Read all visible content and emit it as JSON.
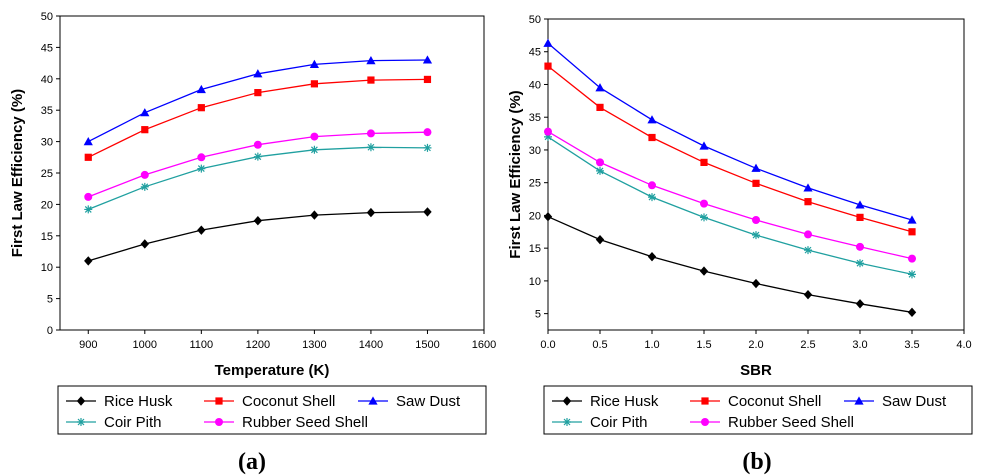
{
  "chart_data": [
    {
      "type": "line",
      "caption": "(a)",
      "xlabel": "Temperature (K)",
      "ylabel": "First Law Efficiency (%)",
      "xlim": [
        850,
        1600
      ],
      "ylim": [
        0,
        50
      ],
      "xticks": [
        "900",
        "1000",
        "1100",
        "1200",
        "1300",
        "1400",
        "1500",
        "1600"
      ],
      "xtick_values": [
        900,
        1000,
        1100,
        1200,
        1300,
        1400,
        1500,
        1600
      ],
      "yticks": [
        "0",
        "5",
        "10",
        "15",
        "20",
        "25",
        "30",
        "35",
        "40",
        "45",
        "50"
      ],
      "ytick_values": [
        0,
        5,
        10,
        15,
        20,
        25,
        30,
        35,
        40,
        45,
        50
      ],
      "x": [
        900,
        1000,
        1100,
        1200,
        1300,
        1400,
        1500
      ],
      "series": [
        {
          "name": "Rice Husk",
          "color": "#000000",
          "marker": "diamond",
          "values": [
            11.0,
            13.7,
            15.9,
            17.4,
            18.3,
            18.7,
            18.8
          ]
        },
        {
          "name": "Coconut Shell",
          "color": "#ff0000",
          "marker": "square",
          "values": [
            27.5,
            31.9,
            35.4,
            37.8,
            39.2,
            39.8,
            39.9
          ]
        },
        {
          "name": "Saw Dust",
          "color": "#0000ff",
          "marker": "triangle",
          "values": [
            30.0,
            34.6,
            38.3,
            40.8,
            42.3,
            42.9,
            43.0
          ]
        },
        {
          "name": "Coir Pith",
          "color": "#20a0a0",
          "marker": "star",
          "values": [
            19.2,
            22.8,
            25.7,
            27.6,
            28.7,
            29.1,
            29.0
          ]
        },
        {
          "name": "Rubber Seed Shell",
          "color": "#ff00ff",
          "marker": "circle",
          "values": [
            21.2,
            24.7,
            27.5,
            29.5,
            30.8,
            31.3,
            31.5
          ]
        }
      ]
    },
    {
      "type": "line",
      "caption": "(b)",
      "xlabel": "SBR",
      "ylabel": "First Law Efficiency (%)",
      "xlim": [
        0.0,
        4.0
      ],
      "ylim": [
        2.5,
        50
      ],
      "xticks": [
        "0.0",
        "0.5",
        "1.0",
        "1.5",
        "2.0",
        "2.5",
        "3.0",
        "3.5",
        "4.0"
      ],
      "xtick_values": [
        0.0,
        0.5,
        1.0,
        1.5,
        2.0,
        2.5,
        3.0,
        3.5,
        4.0
      ],
      "yticks": [
        "5",
        "10",
        "15",
        "20",
        "25",
        "30",
        "35",
        "40",
        "45",
        "50"
      ],
      "ytick_values": [
        5,
        10,
        15,
        20,
        25,
        30,
        35,
        40,
        45,
        50
      ],
      "x": [
        0.0,
        0.5,
        1.0,
        1.5,
        2.0,
        2.5,
        3.0,
        3.5
      ],
      "series": [
        {
          "name": "Rice Husk",
          "color": "#000000",
          "marker": "diamond",
          "values": [
            19.8,
            16.3,
            13.7,
            11.5,
            9.6,
            7.9,
            6.5,
            5.2
          ]
        },
        {
          "name": "Coconut Shell",
          "color": "#ff0000",
          "marker": "square",
          "values": [
            42.8,
            36.5,
            31.9,
            28.1,
            24.9,
            22.1,
            19.7,
            17.5
          ]
        },
        {
          "name": "Saw Dust",
          "color": "#0000ff",
          "marker": "triangle",
          "values": [
            46.3,
            39.5,
            34.6,
            30.6,
            27.2,
            24.2,
            21.6,
            19.3
          ]
        },
        {
          "name": "Coir Pith",
          "color": "#20a0a0",
          "marker": "star",
          "values": [
            32.0,
            26.8,
            22.8,
            19.7,
            17.0,
            14.7,
            12.7,
            11.0
          ]
        },
        {
          "name": "Rubber Seed Shell",
          "color": "#ff00ff",
          "marker": "circle",
          "values": [
            32.8,
            28.1,
            24.6,
            21.8,
            19.3,
            17.1,
            15.2,
            13.4
          ]
        }
      ]
    }
  ]
}
